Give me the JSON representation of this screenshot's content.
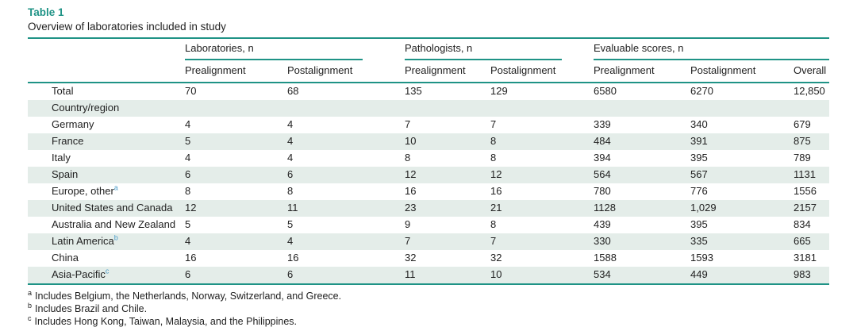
{
  "colors": {
    "accent_teal": "#1f9386",
    "row_shade": "#e4ede9",
    "text": "#212121",
    "superscript_blue": "#4a9cc9"
  },
  "table": {
    "label": "Table 1",
    "caption": "Overview of laboratories included in study",
    "column_groups": [
      {
        "label": "Laboratories, n",
        "span": 2
      },
      {
        "label": "Pathologists, n",
        "span": 2
      },
      {
        "label": "Evaluable scores, n",
        "span": 3
      }
    ],
    "sub_headers": [
      "Prealignment",
      "Postalignment",
      "Prealignment",
      "Postalignment",
      "Prealignment",
      "Postalignment",
      "Overall"
    ],
    "rows": [
      {
        "label": "Total",
        "sup": "",
        "shaded": false,
        "values": [
          "70",
          "68",
          "135",
          "129",
          "6580",
          "6270",
          "12,850"
        ]
      },
      {
        "label": "Country/region",
        "sup": "",
        "shaded": true,
        "values": [
          "",
          "",
          "",
          "",
          "",
          "",
          ""
        ]
      },
      {
        "label": "Germany",
        "sup": "",
        "shaded": false,
        "values": [
          "4",
          "4",
          "7",
          "7",
          "339",
          "340",
          "679"
        ]
      },
      {
        "label": "France",
        "sup": "",
        "shaded": true,
        "values": [
          "5",
          "4",
          "10",
          "8",
          "484",
          "391",
          "875"
        ]
      },
      {
        "label": "Italy",
        "sup": "",
        "shaded": false,
        "values": [
          "4",
          "4",
          "8",
          "8",
          "394",
          "395",
          "789"
        ]
      },
      {
        "label": "Spain",
        "sup": "",
        "shaded": true,
        "values": [
          "6",
          "6",
          "12",
          "12",
          "564",
          "567",
          "1131"
        ]
      },
      {
        "label": "Europe, other",
        "sup": "a",
        "shaded": false,
        "values": [
          "8",
          "8",
          "16",
          "16",
          "780",
          "776",
          "1556"
        ]
      },
      {
        "label": "United States and Canada",
        "sup": "",
        "shaded": true,
        "values": [
          "12",
          "11",
          "23",
          "21",
          "1128",
          "1,029",
          "2157"
        ]
      },
      {
        "label": "Australia and New Zealand",
        "sup": "",
        "shaded": false,
        "values": [
          "5",
          "5",
          "9",
          "8",
          "439",
          "395",
          "834"
        ]
      },
      {
        "label": "Latin America",
        "sup": "b",
        "shaded": true,
        "values": [
          "4",
          "4",
          "7",
          "7",
          "330",
          "335",
          "665"
        ]
      },
      {
        "label": "China",
        "sup": "",
        "shaded": false,
        "values": [
          "16",
          "16",
          "32",
          "32",
          "1588",
          "1593",
          "3181"
        ]
      },
      {
        "label": "Asia-Pacific",
        "sup": "c",
        "shaded": true,
        "values": [
          "6",
          "6",
          "11",
          "10",
          "534",
          "449",
          "983"
        ]
      }
    ],
    "footnotes": [
      {
        "marker": "a",
        "text": "Includes Belgium, the Netherlands, Norway, Switzerland, and Greece."
      },
      {
        "marker": "b",
        "text": "Includes Brazil and Chile."
      },
      {
        "marker": "c",
        "text": "Includes Hong Kong, Taiwan, Malaysia, and the Philippines."
      }
    ]
  }
}
